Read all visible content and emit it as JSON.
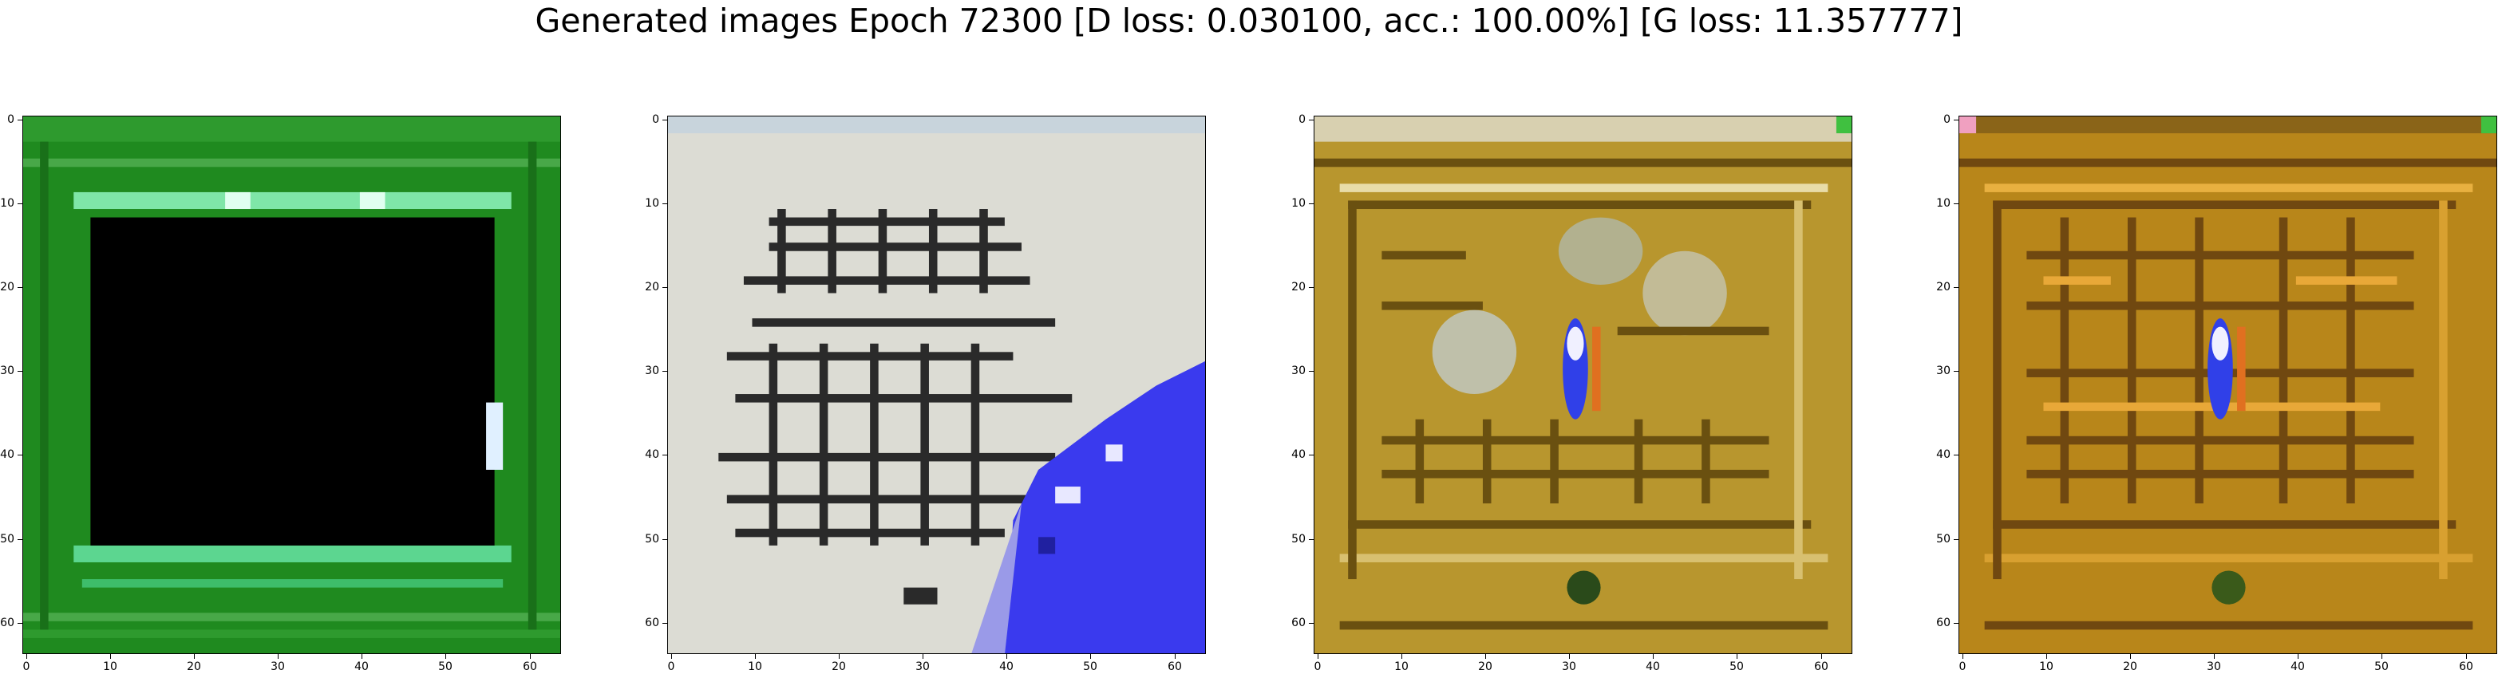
{
  "figure": {
    "title": "Generated images Epoch 72300 [D loss: 0.030100, acc.: 100.00%] [G loss: 11.357777]"
  },
  "axis_ticks": {
    "x": [
      "0",
      "10",
      "20",
      "30",
      "40",
      "50",
      "60"
    ],
    "y": [
      "0",
      "10",
      "20",
      "30",
      "40",
      "50",
      "60"
    ]
  },
  "panels": [
    {
      "id": "sample-1",
      "description_icon": "green-frame-black-center-image",
      "palette": {
        "frame": "#1f8a1f",
        "center": "#000000",
        "highlight": "#7fe6a8"
      }
    },
    {
      "id": "sample-2",
      "description_icon": "white-grid-blue-corner-image",
      "palette": {
        "base": "#dcdcd4",
        "lines": "#2a2a2a",
        "blue": "#3a3aee"
      }
    },
    {
      "id": "sample-3",
      "description_icon": "golden-grid-blue-spot-image",
      "palette": {
        "base": "#b8962e",
        "dark": "#6a5010",
        "light": "#d8d0b0",
        "blue": "#3040e8"
      }
    },
    {
      "id": "sample-4",
      "description_icon": "orange-grid-blue-spot-image",
      "palette": {
        "base": "#b8861a",
        "dark": "#704810",
        "blue": "#3040e8"
      }
    }
  ]
}
